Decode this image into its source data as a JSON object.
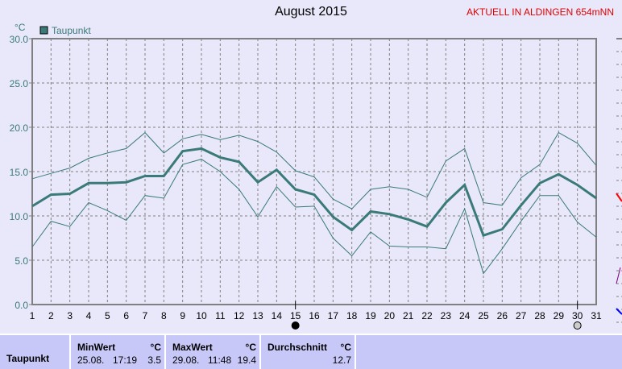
{
  "title": "August 2015",
  "station": "AKTUELL IN ALDINGEN 654mNN",
  "chart_data": {
    "type": "line",
    "title": "August 2015",
    "ylabel": "°C",
    "ylim": [
      0,
      30
    ],
    "yticks": [
      "0.0",
      "5.0",
      "10.0",
      "15.0",
      "20.0",
      "25.0",
      "30.0"
    ],
    "x": [
      1,
      2,
      3,
      4,
      5,
      6,
      7,
      8,
      9,
      10,
      11,
      12,
      13,
      14,
      15,
      16,
      17,
      18,
      19,
      20,
      21,
      22,
      23,
      24,
      25,
      26,
      27,
      28,
      29,
      30,
      31
    ],
    "grid": true,
    "legend_position": "top-left",
    "series": [
      {
        "name": "Taupunkt",
        "role": "mean",
        "color": "#3a7a78",
        "values": [
          11.1,
          12.4,
          12.5,
          13.7,
          13.7,
          13.8,
          14.5,
          14.5,
          17.3,
          17.6,
          16.6,
          16.1,
          13.8,
          15.2,
          13.0,
          12.4,
          9.9,
          8.4,
          10.5,
          10.2,
          9.6,
          8.8,
          11.5,
          13.5,
          7.8,
          8.5,
          11.2,
          13.7,
          14.7,
          13.5,
          12.0
        ]
      },
      {
        "role": "max",
        "color": "#3a7a78",
        "values": [
          14.2,
          14.8,
          15.4,
          16.5,
          17.1,
          17.6,
          19.4,
          17.1,
          18.7,
          19.2,
          18.6,
          19.1,
          18.4,
          17.2,
          15.1,
          14.4,
          11.9,
          10.8,
          13.0,
          13.3,
          13.0,
          12.1,
          16.2,
          17.6,
          11.5,
          11.2,
          14.3,
          15.8,
          19.4,
          18.2,
          15.7
        ]
      },
      {
        "role": "min",
        "color": "#3a7a78",
        "values": [
          6.5,
          9.4,
          8.8,
          11.5,
          10.6,
          9.5,
          12.3,
          12.0,
          15.8,
          16.4,
          15.0,
          13.0,
          9.9,
          13.3,
          11.0,
          11.1,
          7.5,
          5.5,
          8.2,
          6.6,
          6.5,
          6.5,
          6.3,
          10.8,
          3.5,
          6.3,
          9.4,
          12.3,
          12.3,
          9.3,
          7.6
        ]
      }
    ],
    "moon_phases": [
      {
        "day": 15,
        "phase": "new-moon"
      },
      {
        "day": 30,
        "phase": "full-moon"
      }
    ]
  },
  "table": {
    "row_label": "Taupunkt",
    "unit": "°C",
    "min": {
      "header": "MinWert",
      "date": "25.08.",
      "time": "17:19",
      "value": "3.5"
    },
    "max": {
      "header": "MaxWert",
      "date": "29.08.",
      "time": "11:48",
      "value": "19.4"
    },
    "avg": {
      "header": "Durchschnitt",
      "value": "12.7"
    }
  }
}
